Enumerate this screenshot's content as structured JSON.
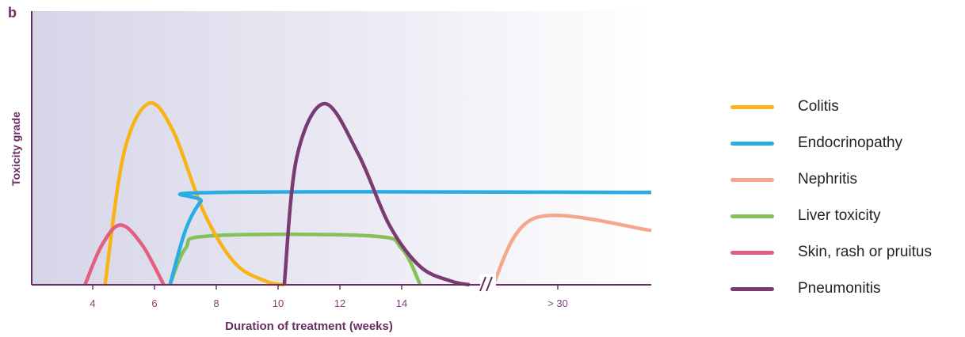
{
  "panel_label": "b",
  "chart_data": {
    "type": "line",
    "xlabel": "Duration of treatment (weeks)",
    "ylabel": "Toxicity grade",
    "tick_labels": [
      "4",
      "6",
      "8",
      "10",
      "12",
      "14",
      "> 30"
    ],
    "axis_break": true,
    "grid": false,
    "legend_position": "right",
    "series": [
      {
        "name": "Colitis",
        "color": "#f8b417",
        "points": [
          [
            4.4,
            0
          ],
          [
            5.0,
            0.72
          ],
          [
            5.8,
            1.0
          ],
          [
            6.6,
            0.85
          ],
          [
            7.6,
            0.4
          ],
          [
            8.6,
            0.12
          ],
          [
            9.6,
            0.02
          ],
          [
            10.2,
            0
          ]
        ]
      },
      {
        "name": "Endocrinopathy",
        "color": "#27ade4",
        "points": [
          [
            6.5,
            0
          ],
          [
            7.0,
            0.3
          ],
          [
            7.5,
            0.46
          ],
          [
            8.0,
            0.51
          ],
          [
            "> 30",
            0.51
          ]
        ]
      },
      {
        "name": "Nephritis",
        "color": "#f4a78c",
        "points": [
          [
            "> 30",
            0
          ],
          [
            "> 30",
            0.37
          ],
          [
            "> 30",
            0.3
          ]
        ]
      },
      {
        "name": "Liver toxicity",
        "color": "#86c058",
        "points": [
          [
            6.5,
            0
          ],
          [
            7.0,
            0.2
          ],
          [
            7.8,
            0.27
          ],
          [
            13.0,
            0.27
          ],
          [
            14.0,
            0.2
          ],
          [
            14.6,
            0
          ]
        ]
      },
      {
        "name": "Skin, rash or pruitus",
        "color": "#e25f7f",
        "points": [
          [
            3.75,
            0
          ],
          [
            4.3,
            0.22
          ],
          [
            4.9,
            0.33
          ],
          [
            5.6,
            0.22
          ],
          [
            6.3,
            0
          ]
        ]
      },
      {
        "name": "Pneumonitis",
        "color": "#7a3b73",
        "points": [
          [
            10.2,
            0
          ],
          [
            10.6,
            0.7
          ],
          [
            11.5,
            1.0
          ],
          [
            12.6,
            0.72
          ],
          [
            13.6,
            0.33
          ],
          [
            14.6,
            0.1
          ],
          [
            15.6,
            0.02
          ],
          [
            16.2,
            0
          ]
        ]
      }
    ]
  }
}
